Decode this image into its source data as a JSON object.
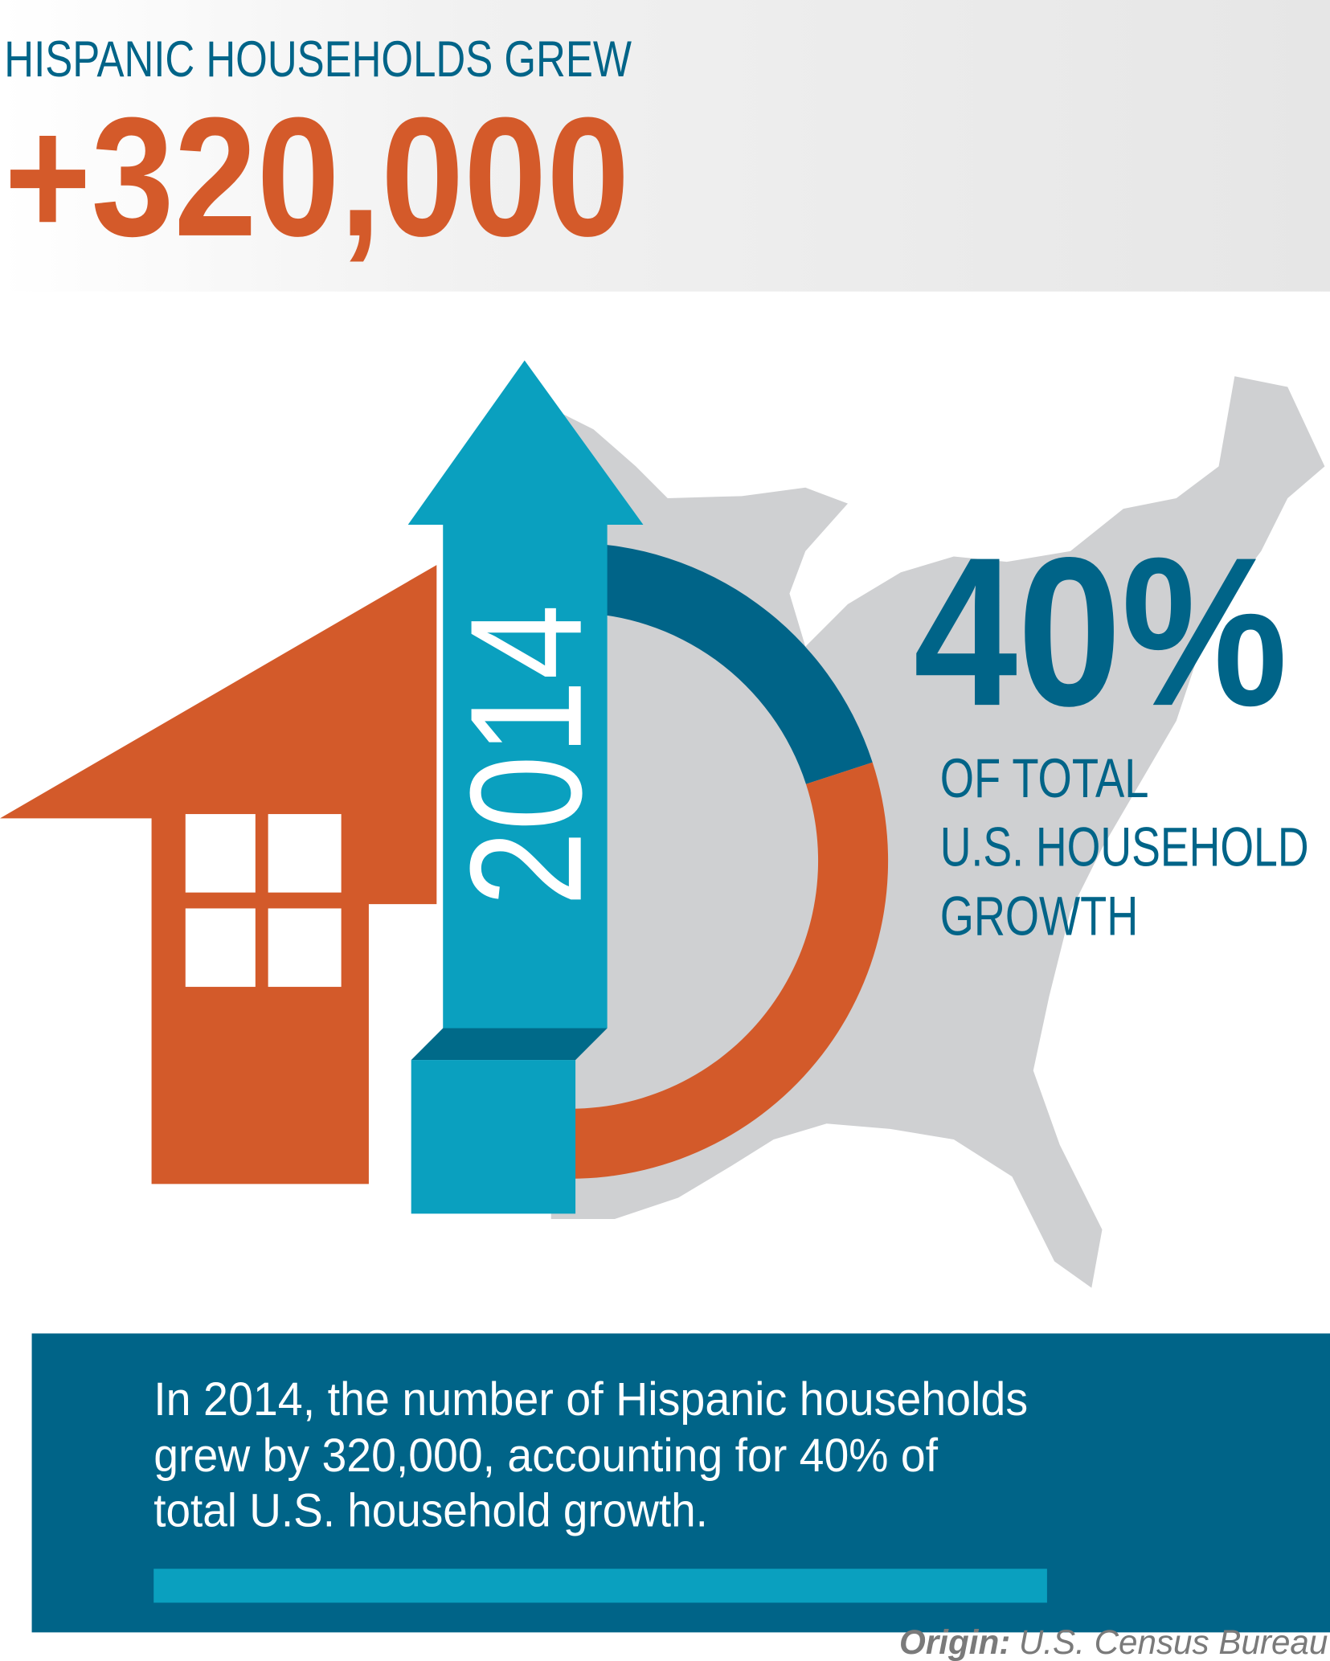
{
  "header": {
    "title": "HISPANIC HOUSEHOLDS GREW",
    "figure": "+320,000"
  },
  "graphic": {
    "year": "2014",
    "share": {
      "value": 40,
      "label": "40%"
    },
    "share_text": [
      "OF TOTAL",
      "U.S. HOUSEHOLD",
      "GROWTH"
    ]
  },
  "caption": [
    "In 2014, the number of Hispanic households",
    "grew by 320,000, accounting for 40% of",
    "total U.S. household growth."
  ],
  "source": {
    "label": "Origin:",
    "text": "U.S. Census Bureau"
  }
}
